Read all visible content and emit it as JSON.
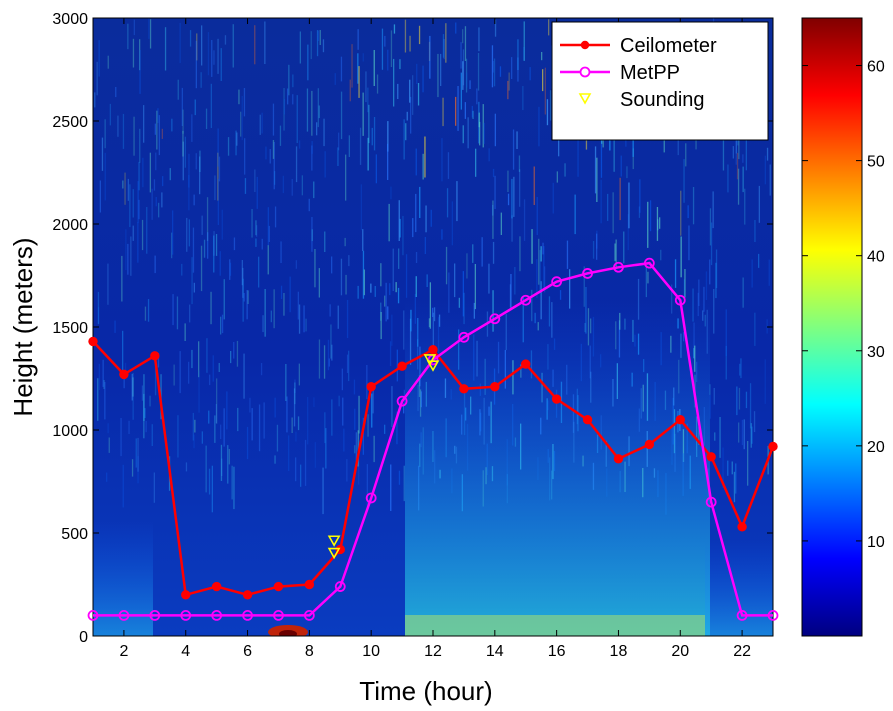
{
  "chart_data": {
    "type": "line",
    "xlabel": "Time (hour)",
    "ylabel": "Height (meters)",
    "xlim": [
      1,
      23
    ],
    "ylim": [
      0,
      3000
    ],
    "x_ticks": [
      2,
      4,
      6,
      8,
      10,
      12,
      14,
      16,
      18,
      20,
      22
    ],
    "y_ticks": [
      0,
      500,
      1000,
      1500,
      2000,
      2500,
      3000
    ],
    "background": "heatmap",
    "legend_position": "top-right",
    "series": [
      {
        "name": "Ceilometer",
        "color": "#ff0000",
        "marker": "filled-circle",
        "x": [
          1,
          2,
          3,
          4,
          5,
          6,
          7,
          8,
          9,
          10,
          11,
          12,
          13,
          14,
          15,
          16,
          17,
          18,
          19,
          20,
          21,
          22,
          23
        ],
        "y": [
          1430,
          1270,
          1360,
          200,
          240,
          200,
          240,
          250,
          420,
          1210,
          1310,
          1390,
          1200,
          1210,
          1320,
          1150,
          1050,
          860,
          930,
          1050,
          870,
          530,
          920
        ]
      },
      {
        "name": "MetPP",
        "color": "#ff00ff",
        "marker": "open-circle",
        "x": [
          1,
          2,
          3,
          4,
          5,
          6,
          7,
          8,
          9,
          10,
          11,
          12,
          13,
          14,
          15,
          16,
          17,
          18,
          19,
          20,
          21,
          22,
          23
        ],
        "y": [
          100,
          100,
          100,
          100,
          100,
          100,
          100,
          100,
          240,
          670,
          1140,
          1340,
          1450,
          1540,
          1630,
          1720,
          1760,
          1790,
          1810,
          1630,
          650,
          100,
          100
        ]
      },
      {
        "name": "Sounding",
        "color": "#ffff00",
        "marker": "open-triangle-down",
        "x": [
          8.8,
          8.8,
          11.9,
          12.0
        ],
        "y": [
          460,
          400,
          1340,
          1310
        ]
      }
    ],
    "colorbar": {
      "ticks": [
        10,
        20,
        30,
        40,
        50,
        60
      ],
      "range": [
        0,
        65
      ]
    }
  }
}
